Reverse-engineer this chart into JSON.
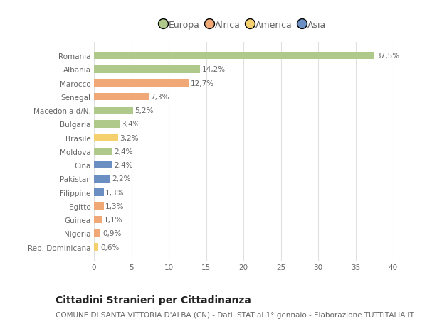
{
  "countries": [
    "Romania",
    "Albania",
    "Marocco",
    "Senegal",
    "Macedonia d/N.",
    "Bulgaria",
    "Brasile",
    "Moldova",
    "Cina",
    "Pakistan",
    "Filippine",
    "Egitto",
    "Guinea",
    "Nigeria",
    "Rep. Dominicana"
  ],
  "values": [
    37.5,
    14.2,
    12.7,
    7.3,
    5.2,
    3.4,
    3.2,
    2.4,
    2.4,
    2.2,
    1.3,
    1.3,
    1.1,
    0.9,
    0.6
  ],
  "labels": [
    "37,5%",
    "14,2%",
    "12,7%",
    "7,3%",
    "5,2%",
    "3,4%",
    "3,2%",
    "2,4%",
    "2,4%",
    "2,2%",
    "1,3%",
    "1,3%",
    "1,1%",
    "0,9%",
    "0,6%"
  ],
  "colors": [
    "#aec98a",
    "#aec98a",
    "#f0a876",
    "#f0a876",
    "#aec98a",
    "#aec98a",
    "#f5d06e",
    "#aec98a",
    "#6b8fc2",
    "#6b8fc2",
    "#6b8fc2",
    "#f0a876",
    "#f0a876",
    "#f0a876",
    "#f5d06e"
  ],
  "legend_labels": [
    "Europa",
    "Africa",
    "America",
    "Asia"
  ],
  "legend_colors": [
    "#aec98a",
    "#f0a876",
    "#f5d06e",
    "#6b8fc2"
  ],
  "title": "Cittadini Stranieri per Cittadinanza",
  "subtitle": "COMUNE DI SANTA VITTORIA D'ALBA (CN) - Dati ISTAT al 1° gennaio - Elaborazione TUTTITALIA.IT",
  "xlim": [
    0,
    40
  ],
  "xticks": [
    0,
    5,
    10,
    15,
    20,
    25,
    30,
    35,
    40
  ],
  "background_color": "#ffffff",
  "grid_color": "#e0e0e0",
  "bar_height": 0.55,
  "title_fontsize": 10,
  "subtitle_fontsize": 7.5,
  "label_fontsize": 7.5,
  "tick_fontsize": 7.5,
  "legend_fontsize": 9
}
